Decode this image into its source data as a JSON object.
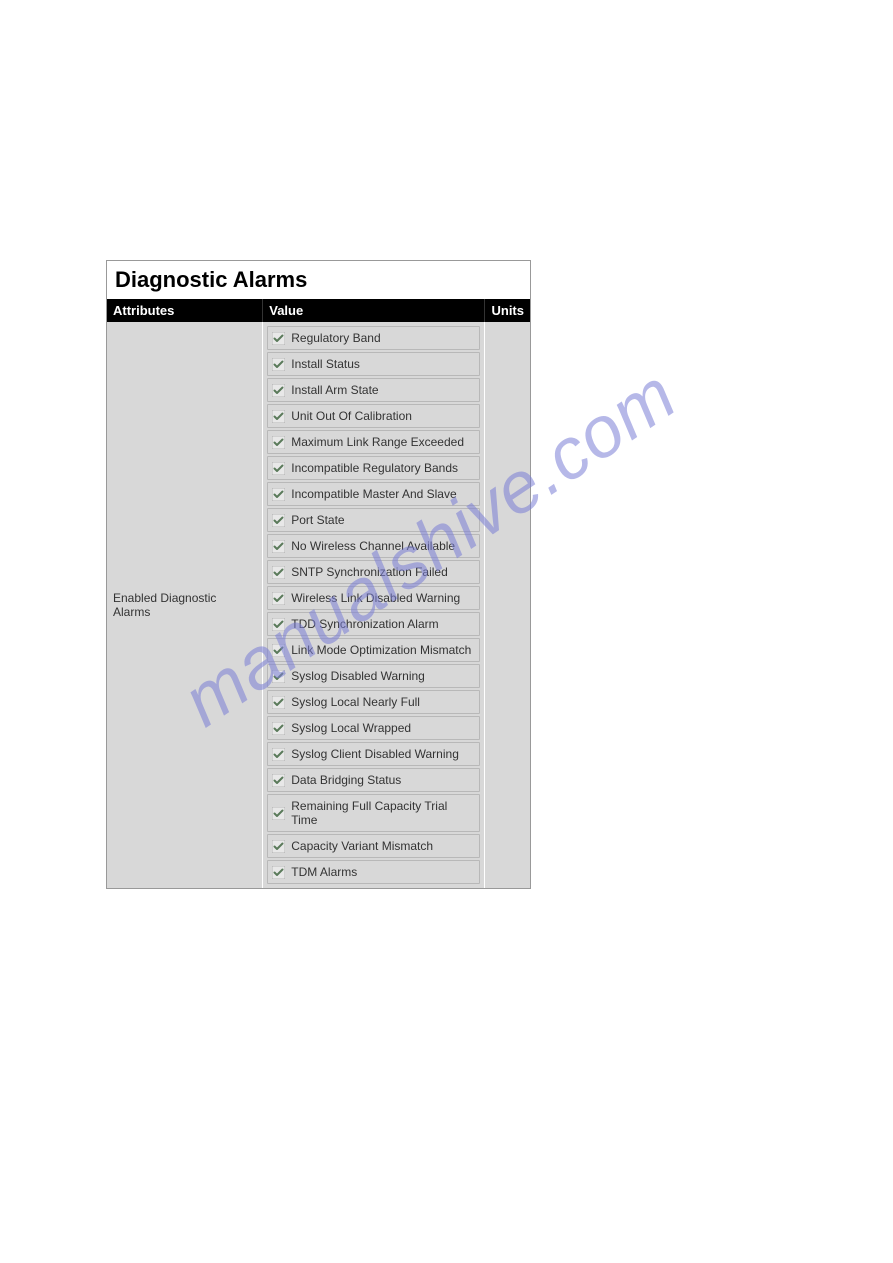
{
  "panel": {
    "title": "Diagnostic Alarms",
    "columns": {
      "attributes": "Attributes",
      "value": "Value",
      "units": "Units"
    },
    "row_label": "Enabled Diagnostic Alarms",
    "alarms": [
      {
        "label": "Regulatory Band",
        "checked": true
      },
      {
        "label": "Install Status",
        "checked": true
      },
      {
        "label": "Install Arm State",
        "checked": true
      },
      {
        "label": "Unit Out Of Calibration",
        "checked": true
      },
      {
        "label": "Maximum Link Range Exceeded",
        "checked": true
      },
      {
        "label": "Incompatible Regulatory Bands",
        "checked": true
      },
      {
        "label": "Incompatible Master And Slave",
        "checked": true
      },
      {
        "label": "Port State",
        "checked": true
      },
      {
        "label": "No Wireless Channel Available",
        "checked": true
      },
      {
        "label": "SNTP Synchronization Failed",
        "checked": true
      },
      {
        "label": "Wireless Link Disabled Warning",
        "checked": true
      },
      {
        "label": "TDD Synchronization Alarm",
        "checked": true
      },
      {
        "label": "Link Mode Optimization Mismatch",
        "checked": true
      },
      {
        "label": "Syslog Disabled Warning",
        "checked": true
      },
      {
        "label": "Syslog Local Nearly Full",
        "checked": true
      },
      {
        "label": "Syslog Local Wrapped",
        "checked": true
      },
      {
        "label": "Syslog Client Disabled Warning",
        "checked": true
      },
      {
        "label": "Data Bridging Status",
        "checked": true
      },
      {
        "label": "Remaining Full Capacity Trial Time",
        "checked": true
      },
      {
        "label": "Capacity Variant Mismatch",
        "checked": true
      },
      {
        "label": "TDM Alarms",
        "checked": true
      }
    ]
  },
  "watermark": {
    "text": "manualshive.com",
    "color": "#7b7fd6"
  },
  "colors": {
    "header_bg": "#000000",
    "header_text": "#ffffff",
    "cell_bg": "#d8d8d8",
    "text": "#333333",
    "border": "#b8b8b8"
  }
}
